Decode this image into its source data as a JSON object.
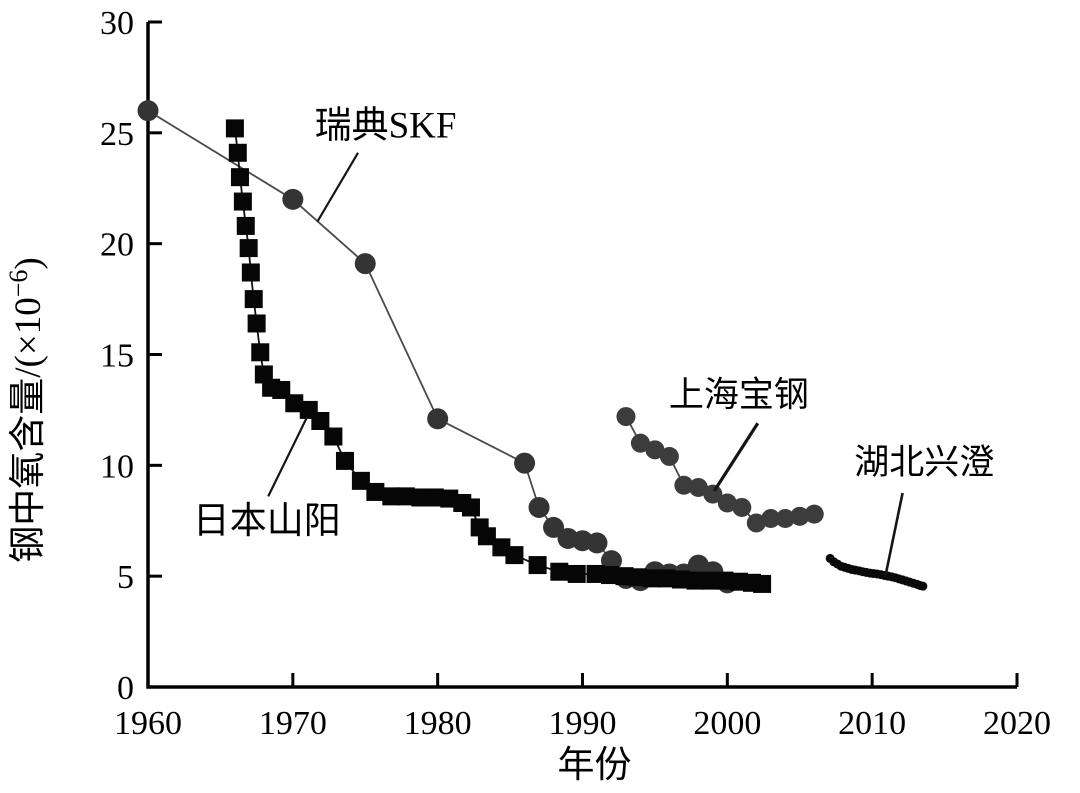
{
  "figure": {
    "background": "#ffffff",
    "ink_color": "#000000"
  },
  "chart_data": {
    "type": "line",
    "title": "",
    "xlabel": "年份",
    "ylabel": "钢中氧含量/(×10⁻⁶)",
    "ylabel_main": "钢中氧含量/(×10",
    "ylabel_sup": "−6",
    "ylabel_end": ")",
    "xlim": [
      1960,
      2020
    ],
    "ylim": [
      0,
      30
    ],
    "xticks": [
      1960,
      1970,
      1980,
      1990,
      2000,
      2010,
      2020
    ],
    "yticks": [
      0,
      5,
      10,
      15,
      20,
      25,
      30
    ],
    "grid": false,
    "legend": "inline-annotations",
    "series": [
      {
        "name": "瑞典SKF",
        "marker": "circle",
        "marker_size": 10.5,
        "color": "#343434",
        "line_color": "#4a4a4a",
        "line_width": 1.8,
        "points": [
          [
            1960,
            26
          ],
          [
            1970,
            22
          ],
          [
            1975,
            19.1
          ],
          [
            1980,
            12.1
          ],
          [
            1986,
            10.1
          ],
          [
            1987,
            8.1
          ],
          [
            1988,
            7.2
          ],
          [
            1989,
            6.7
          ],
          [
            1990,
            6.6
          ],
          [
            1991,
            6.5
          ],
          [
            1992,
            5.7
          ],
          [
            1993,
            4.9
          ],
          [
            1994,
            4.8
          ],
          [
            1995,
            5.2
          ],
          [
            1996,
            5.1
          ],
          [
            1997,
            5.1
          ],
          [
            1998,
            5.5
          ],
          [
            1999,
            5.2
          ],
          [
            2000,
            4.7
          ]
        ]
      },
      {
        "name": "日本山阳",
        "marker": "square",
        "marker_size": 9,
        "color": "#060606",
        "line_color": "#111111",
        "line_width": 1.8,
        "points": [
          [
            1966.0,
            25.2
          ],
          [
            1966.2,
            24.1
          ],
          [
            1966.35,
            23.0
          ],
          [
            1966.55,
            21.9
          ],
          [
            1966.75,
            20.8
          ],
          [
            1966.95,
            19.8
          ],
          [
            1967.1,
            18.7
          ],
          [
            1967.3,
            17.5
          ],
          [
            1967.5,
            16.4
          ],
          [
            1967.75,
            15.1
          ],
          [
            1968.0,
            14.1
          ],
          [
            1968.5,
            13.5
          ],
          [
            1969.2,
            13.4
          ],
          [
            1970.1,
            12.8
          ],
          [
            1971.1,
            12.5
          ],
          [
            1971.9,
            12.0
          ],
          [
            1972.8,
            11.3
          ],
          [
            1973.6,
            10.2
          ],
          [
            1974.7,
            9.3
          ],
          [
            1975.7,
            8.8
          ],
          [
            1976.8,
            8.6
          ],
          [
            1977.8,
            8.6
          ],
          [
            1978.8,
            8.55
          ],
          [
            1979.8,
            8.55
          ],
          [
            1980.8,
            8.5
          ],
          [
            1981.7,
            8.3
          ],
          [
            1982.3,
            8.1
          ],
          [
            1982.9,
            7.2
          ],
          [
            1983.4,
            6.8
          ],
          [
            1984.4,
            6.3
          ],
          [
            1985.3,
            5.95
          ],
          [
            1986.9,
            5.5
          ],
          [
            1988.4,
            5.2
          ],
          [
            1989.6,
            5.1
          ],
          [
            1990.9,
            5.1
          ],
          [
            1991.9,
            5.05
          ],
          [
            1992.9,
            5.0
          ],
          [
            1993.8,
            4.95
          ],
          [
            1994.8,
            4.9
          ],
          [
            1995.8,
            4.9
          ],
          [
            1996.8,
            4.85
          ],
          [
            1997.8,
            4.8
          ],
          [
            1998.8,
            4.8
          ],
          [
            1999.8,
            4.8
          ],
          [
            2000.8,
            4.75
          ],
          [
            2001.7,
            4.7
          ],
          [
            2002.4,
            4.65
          ]
        ]
      },
      {
        "name": "上海宝钢",
        "marker": "circle",
        "marker_size": 9.5,
        "color": "#3c3c3c",
        "line_color": "#4a4a4a",
        "line_width": 1.8,
        "points": [
          [
            1993,
            12.2
          ],
          [
            1994,
            11.0
          ],
          [
            1995,
            10.7
          ],
          [
            1996,
            10.4
          ],
          [
            1997,
            9.1
          ],
          [
            1998,
            9.0
          ],
          [
            1999,
            8.7
          ],
          [
            2000,
            8.3
          ],
          [
            2001,
            8.1
          ],
          [
            2002,
            7.4
          ],
          [
            2003,
            7.6
          ],
          [
            2004,
            7.6
          ],
          [
            2005,
            7.7
          ],
          [
            2006,
            7.8
          ]
        ]
      },
      {
        "name": "湖北兴澄",
        "marker": "circle",
        "marker_size": 4.5,
        "color": "#0a0a0a",
        "line_color": "#0a0a0a",
        "line_width": 7,
        "points": [
          [
            2007.1,
            5.8
          ],
          [
            2007.35,
            5.65
          ],
          [
            2007.6,
            5.55
          ],
          [
            2007.85,
            5.45
          ],
          [
            2008.1,
            5.4
          ],
          [
            2008.35,
            5.35
          ],
          [
            2008.6,
            5.3
          ],
          [
            2008.85,
            5.27
          ],
          [
            2009.1,
            5.24
          ],
          [
            2009.35,
            5.2
          ],
          [
            2009.6,
            5.17
          ],
          [
            2009.85,
            5.14
          ],
          [
            2010.1,
            5.12
          ],
          [
            2010.35,
            5.1
          ],
          [
            2010.6,
            5.07
          ],
          [
            2010.85,
            5.03
          ],
          [
            2011.1,
            5.0
          ],
          [
            2011.35,
            4.97
          ],
          [
            2011.6,
            4.93
          ],
          [
            2011.85,
            4.88
          ],
          [
            2012.1,
            4.83
          ],
          [
            2012.35,
            4.78
          ],
          [
            2012.6,
            4.73
          ],
          [
            2012.85,
            4.68
          ],
          [
            2013.1,
            4.63
          ],
          [
            2013.3,
            4.58
          ],
          [
            2013.5,
            4.55
          ]
        ]
      }
    ],
    "annotations": [
      {
        "text": "瑞典SKF",
        "label_x": 1976.4,
        "label_y": 24.8,
        "line": [
          1974.5,
          24.1,
          1971.7,
          21.0
        ],
        "font_size": 37,
        "line_width": 2.2
      },
      {
        "text": "日本山阳",
        "label_x": 1968.2,
        "label_y": 6.95,
        "line": [
          1968.3,
          8.6,
          1971.0,
          12.2
        ],
        "font_size": 37,
        "line_width": 2.2
      },
      {
        "text": "上海宝钢",
        "label_x": 2000.8,
        "label_y": 12.65,
        "line": [
          2002.1,
          11.9,
          1999.1,
          8.85
        ],
        "font_size": 35,
        "line_width": 3.2
      },
      {
        "text": "湖北兴澄",
        "label_x": 2013.6,
        "label_y": 9.6,
        "line": [
          2012.1,
          8.75,
          2010.9,
          4.96
        ],
        "font_size": 35,
        "line_width": 2.6
      }
    ]
  }
}
